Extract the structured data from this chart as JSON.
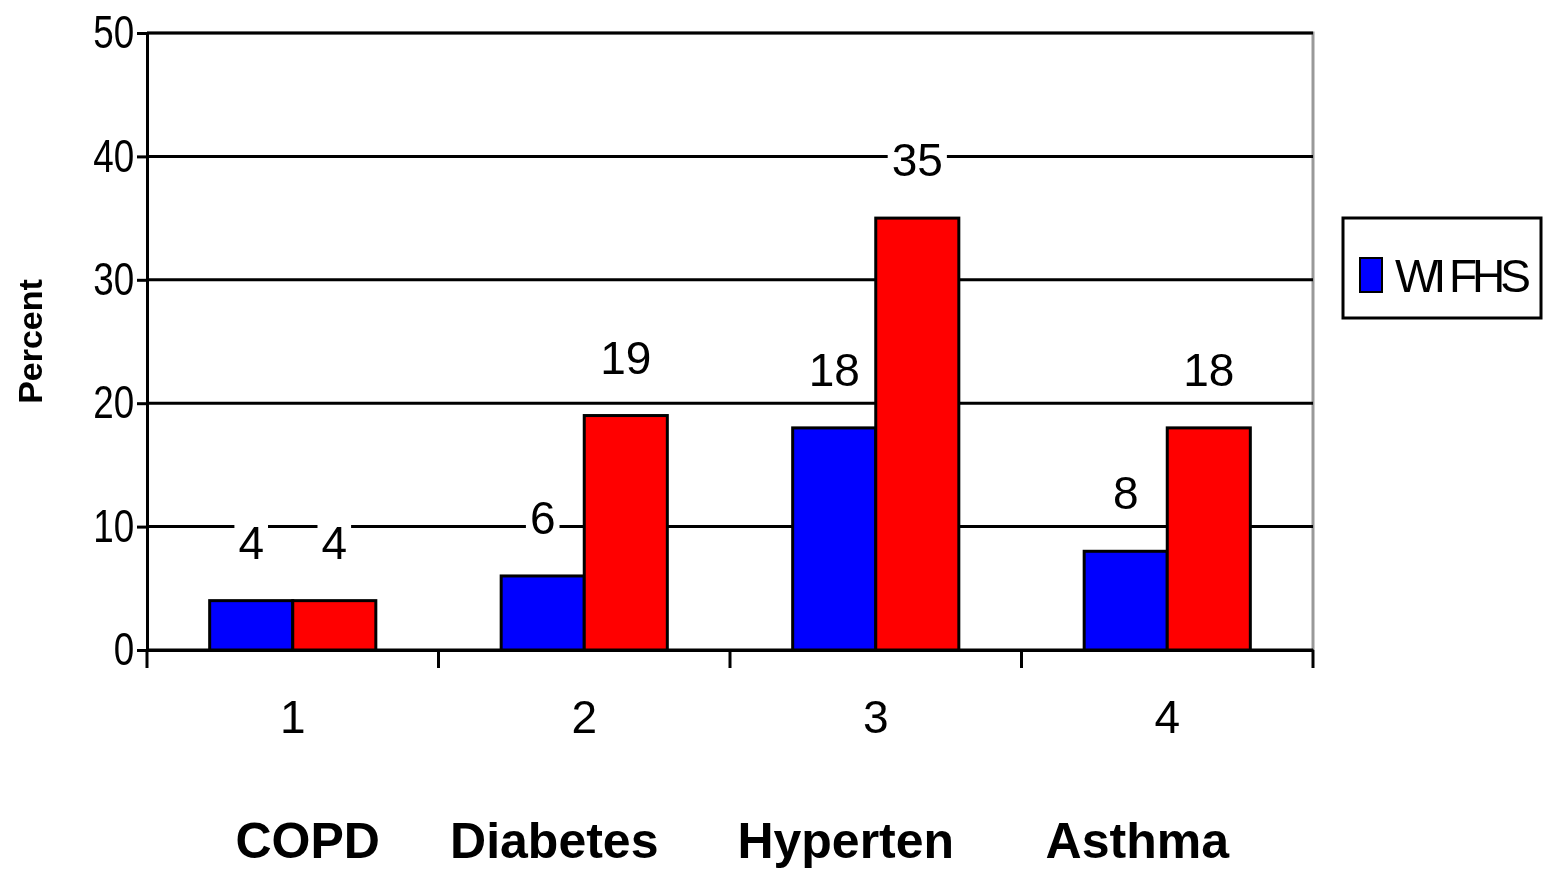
{
  "chart_data": {
    "type": "bar",
    "ylabel": "Percent",
    "categories": [
      "1",
      "2",
      "3",
      "4"
    ],
    "annotations": [
      "COPD",
      "Diabetes",
      "Hyperten",
      "Asthma"
    ],
    "series": [
      {
        "name": "WI FHS",
        "color": "#0000ff",
        "values": [
          4,
          6,
          18,
          8
        ]
      },
      {
        "color": "#ff0000",
        "values": [
          4,
          19,
          35,
          18
        ]
      }
    ],
    "ylim": [
      0,
      50
    ],
    "yticks": [
      0,
      10,
      20,
      30,
      40,
      50
    ],
    "grid": "y",
    "legend": "right",
    "data_labels": true
  }
}
